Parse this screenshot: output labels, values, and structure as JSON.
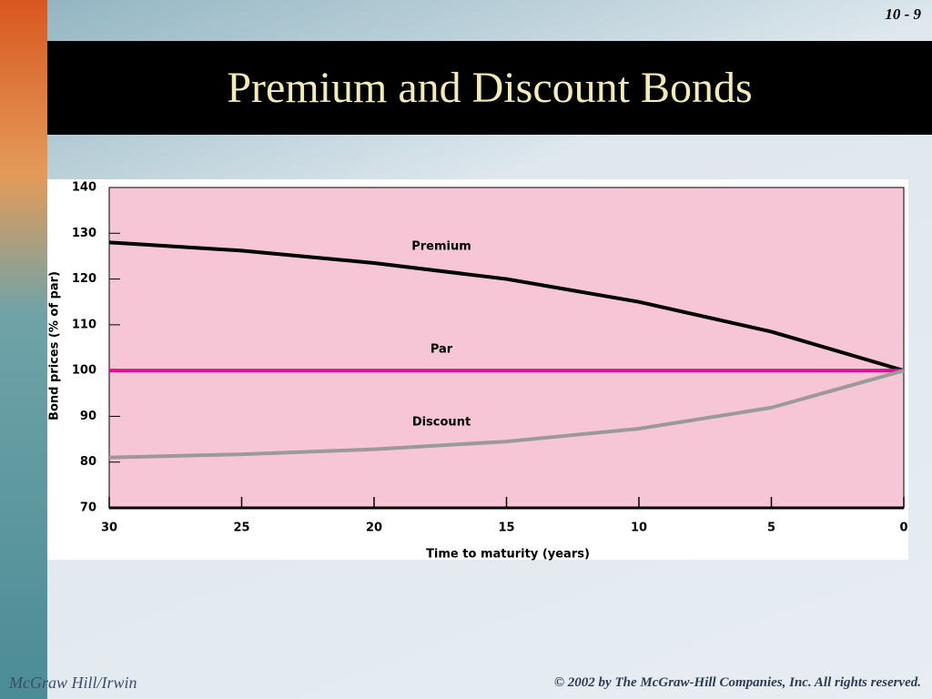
{
  "slide": {
    "page_number": "10 - 9",
    "title": "Premium and Discount Bonds",
    "footer_left": "McGraw Hill/Irwin",
    "footer_right": "© 2002 by The McGraw-Hill Companies, Inc. All rights reserved."
  },
  "chart_data": {
    "type": "line",
    "x_label": "Time to maturity (years)",
    "y_label": "Bond prices (% of par)",
    "x": [
      30,
      25,
      20,
      15,
      10,
      5,
      0
    ],
    "series": [
      {
        "name": "Premium",
        "color": "#000000",
        "values": [
          128,
          126.2,
          123.5,
          120,
          115,
          108.5,
          100
        ]
      },
      {
        "name": "Par",
        "color": "#e0138c",
        "values": [
          100,
          100,
          100,
          100,
          100,
          100,
          100
        ]
      },
      {
        "name": "Discount",
        "color": "#9a9a9a",
        "values": [
          81,
          81.7,
          82.8,
          84.5,
          87.3,
          91.9,
          100
        ]
      }
    ],
    "xlim": [
      30,
      0
    ],
    "xticks": [
      30,
      25,
      20,
      15,
      10,
      5,
      0
    ],
    "ylim": [
      70,
      140
    ],
    "yticks": [
      70,
      80,
      90,
      100,
      110,
      120,
      130,
      140
    ],
    "plot_background": "#f7c6d6"
  }
}
